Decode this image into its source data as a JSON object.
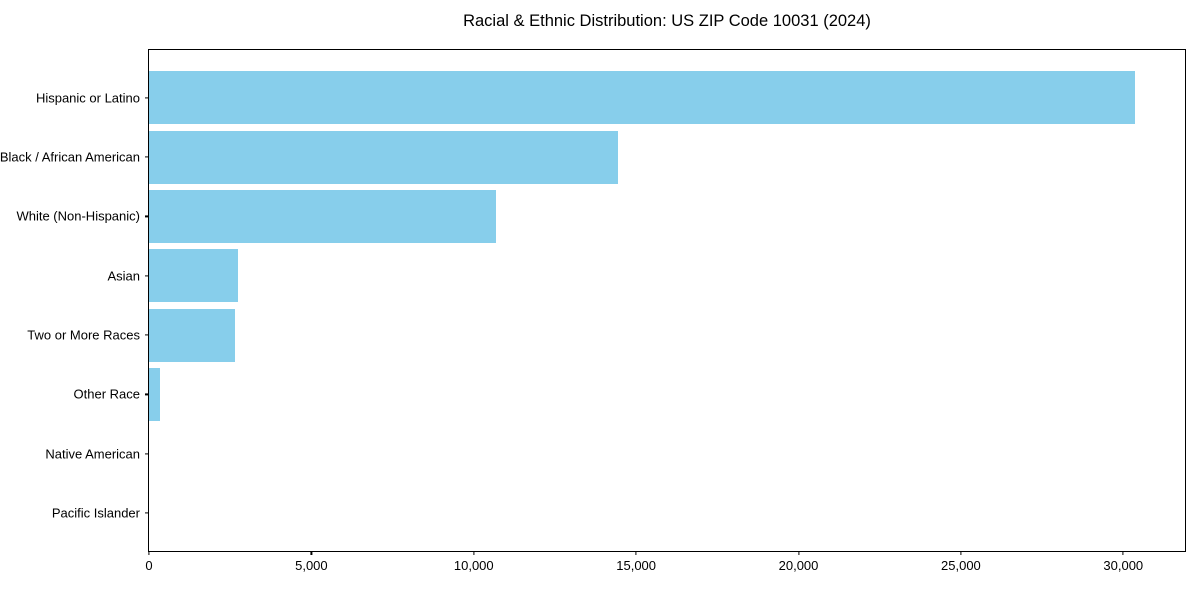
{
  "title": "Racial & Ethnic Distribution: US ZIP Code 10031 (2024)",
  "chart_data": {
    "type": "bar",
    "orientation": "horizontal",
    "title": "Racial & Ethnic Distribution: US ZIP Code 10031 (2024)",
    "categories": [
      "Hispanic or Latino",
      "Black / African American",
      "White (Non-Hispanic)",
      "Asian",
      "Two or More Races",
      "Other Race",
      "Native American",
      "Pacific Islander"
    ],
    "values": [
      30370,
      14430,
      10670,
      2730,
      2640,
      350,
      0,
      0
    ],
    "xlabel": "",
    "ylabel": "",
    "xlim": [
      0,
      31900
    ],
    "xticks": [
      0,
      5000,
      10000,
      15000,
      20000,
      25000,
      30000
    ],
    "xtick_labels": [
      "0",
      "5,000",
      "10,000",
      "15,000",
      "20,000",
      "25,000",
      "30,000"
    ],
    "bar_color": "#87CEEB",
    "background_color": "#ffffff",
    "frame_color": "#000000",
    "grid": false,
    "legend": "none"
  }
}
